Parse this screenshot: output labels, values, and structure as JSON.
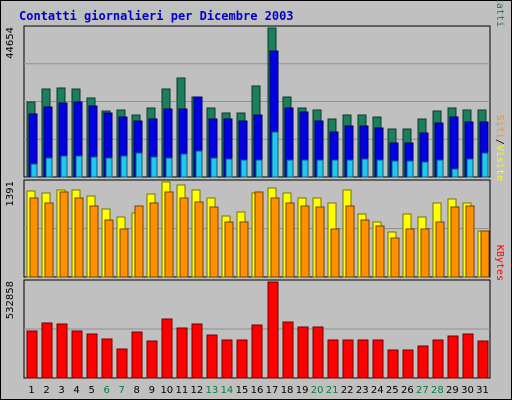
{
  "title": "Contatti giornalieri per Dicembre 2003",
  "colors": {
    "background": "#c0c0c0",
    "title": "#0000cc",
    "contatti": "#1a7f5a",
    "file": "#0000e0",
    "pagine": "#1ec8f0",
    "visite": "#ffff00",
    "siti": "#ff9000",
    "kbytes": "#ff0000",
    "weekend_label": "#008040"
  },
  "chart_data": [
    {
      "type": "bar",
      "panel": "hits",
      "categories": [
        "1",
        "2",
        "3",
        "4",
        "5",
        "6",
        "7",
        "8",
        "9",
        "10",
        "11",
        "12",
        "13",
        "14",
        "15",
        "16",
        "17",
        "18",
        "19",
        "20",
        "21",
        "22",
        "23",
        "24",
        "25",
        "26",
        "27",
        "28",
        "29",
        "30",
        "31"
      ],
      "ymax_label": "44654",
      "ylim": [
        0,
        44654
      ],
      "right_label": [
        {
          "text": "Pagine",
          "color": "#1ec8f0"
        },
        {
          "text": "/",
          "color": "#000000"
        },
        {
          "text": "File",
          "color": "#0000e0"
        },
        {
          "text": "/",
          "color": "#000000"
        },
        {
          "text": "Contatti",
          "color": "#1a7f5a"
        }
      ],
      "series": [
        {
          "name": "Contatti",
          "color": "#1a7f5a",
          "values": [
            22400,
            26300,
            26600,
            26300,
            23700,
            19900,
            20100,
            18500,
            20800,
            26300,
            29700,
            24100,
            20700,
            19100,
            19100,
            27400,
            44654,
            24100,
            20800,
            20100,
            17400,
            18500,
            18500,
            18100,
            14300,
            14300,
            17400,
            19900,
            20800,
            20100,
            20100
          ]
        },
        {
          "name": "File",
          "color": "#0000e0",
          "values": [
            18900,
            21100,
            22200,
            22400,
            21300,
            19300,
            17900,
            16700,
            17400,
            20300,
            20300,
            24100,
            17500,
            17400,
            16700,
            18500,
            37900,
            20800,
            19500,
            16700,
            13400,
            15200,
            15200,
            14800,
            10100,
            10100,
            13100,
            16100,
            18100,
            16400,
            16400
          ]
        },
        {
          "name": "Pagine",
          "color": "#1ec8f0",
          "values": [
            4000,
            5600,
            6400,
            6200,
            6000,
            5800,
            6400,
            7200,
            6000,
            5800,
            6800,
            7900,
            5600,
            5400,
            5000,
            5000,
            13400,
            5200,
            5200,
            5000,
            5000,
            5000,
            5400,
            5000,
            4700,
            4700,
            4500,
            5000,
            2500,
            5400,
            7200
          ]
        }
      ]
    },
    {
      "type": "bar",
      "panel": "visits",
      "categories": [
        "1",
        "2",
        "3",
        "4",
        "5",
        "6",
        "7",
        "8",
        "9",
        "10",
        "11",
        "12",
        "13",
        "14",
        "15",
        "16",
        "17",
        "18",
        "19",
        "20",
        "21",
        "22",
        "23",
        "24",
        "25",
        "26",
        "27",
        "28",
        "29",
        "30",
        "31"
      ],
      "ymax_label": "1391",
      "ylim": [
        0,
        1391
      ],
      "right_label": [
        {
          "text": "Siti",
          "color": "#ff9000"
        },
        {
          "text": "/",
          "color": "#000000"
        },
        {
          "text": "Visite",
          "color": "#ffff00"
        }
      ],
      "series": [
        {
          "name": "Visite",
          "color": "#ffff00",
          "values": [
            1260,
            1230,
            1280,
            1270,
            1190,
            990,
            880,
            930,
            1210,
            1391,
            1340,
            1280,
            1160,
            890,
            950,
            1230,
            1310,
            1230,
            1160,
            1150,
            1090,
            1280,
            920,
            800,
            660,
            920,
            880,
            1090,
            1140,
            1090,
            680
          ]
        },
        {
          "name": "Siti",
          "color": "#ff9000",
          "values": [
            1160,
            1090,
            1250,
            1160,
            1040,
            830,
            710,
            1040,
            1090,
            1250,
            1160,
            1100,
            1030,
            810,
            810,
            1250,
            1160,
            1090,
            1040,
            1030,
            710,
            1040,
            840,
            740,
            570,
            710,
            710,
            800,
            1030,
            1040,
            680
          ]
        }
      ]
    },
    {
      "type": "bar",
      "panel": "kbytes",
      "categories": [
        "1",
        "2",
        "3",
        "4",
        "5",
        "6",
        "7",
        "8",
        "9",
        "10",
        "11",
        "12",
        "13",
        "14",
        "15",
        "16",
        "17",
        "18",
        "19",
        "20",
        "21",
        "22",
        "23",
        "24",
        "25",
        "26",
        "27",
        "28",
        "29",
        "30",
        "31"
      ],
      "ymax_label": "532858",
      "ylim": [
        0,
        532858
      ],
      "right_label": [
        {
          "text": "KBytes",
          "color": "#ff0000"
        }
      ],
      "series": [
        {
          "name": "KBytes",
          "color": "#ff0000",
          "values": [
            263000,
            303000,
            298000,
            263000,
            247000,
            216000,
            159000,
            258000,
            203000,
            327000,
            277000,
            302000,
            237000,
            212000,
            212000,
            293000,
            532858,
            313000,
            281000,
            281000,
            212000,
            212000,
            212000,
            212000,
            156000,
            156000,
            176000,
            212000,
            233000,
            242000,
            207000
          ]
        }
      ]
    }
  ],
  "x_axis": {
    "labels": [
      "1",
      "2",
      "3",
      "4",
      "5",
      "6",
      "7",
      "8",
      "9",
      "10",
      "11",
      "12",
      "13",
      "14",
      "15",
      "16",
      "17",
      "18",
      "19",
      "20",
      "21",
      "22",
      "23",
      "24",
      "25",
      "26",
      "27",
      "28",
      "29",
      "30",
      "31"
    ],
    "weekend_days": [
      "6",
      "7",
      "13",
      "14",
      "20",
      "21",
      "27",
      "28"
    ]
  }
}
